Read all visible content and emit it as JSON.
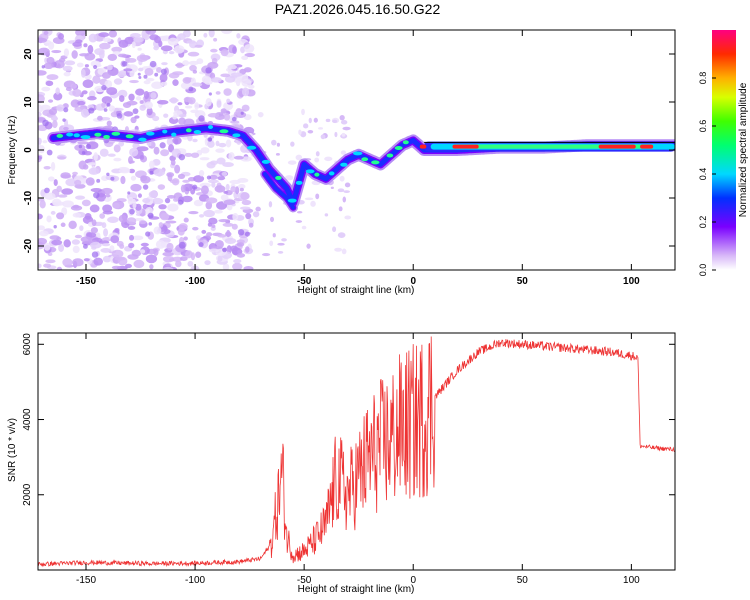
{
  "title": "PAZ1.2026.045.16.50.G22",
  "chart_data": [
    {
      "type": "heatmap",
      "title": "PAZ1.2026.045.16.50.G22",
      "xlabel": "Height of straight line (km)",
      "ylabel": "Frequency (Hz)",
      "xlim": [
        -172,
        120
      ],
      "ylim": [
        -25,
        25
      ],
      "xticks": [
        -150,
        -100,
        -50,
        0,
        50,
        100
      ],
      "yticks": [
        -20,
        -10,
        0,
        10,
        20
      ],
      "ridge": {
        "x": [
          -165,
          -155,
          -145,
          -135,
          -125,
          -115,
          -105,
          -95,
          -85,
          -78,
          -72,
          -66,
          -62,
          -58,
          -55,
          -50,
          -45,
          -40,
          -35,
          -30,
          -25,
          -20,
          -15,
          -10,
          -5,
          0,
          5,
          10,
          20,
          40,
          60,
          80,
          100,
          120
        ],
        "y": [
          2.5,
          3,
          3.5,
          3,
          2.5,
          3.5,
          4,
          4.5,
          4,
          3,
          0,
          -4,
          -6,
          -8,
          -11,
          -3,
          -5,
          -6,
          -4,
          -2,
          -1,
          -2,
          -3,
          -1,
          1,
          2,
          0,
          0,
          0,
          0.5,
          0.5,
          1,
          1,
          1
        ]
      },
      "secondary_ridge": {
        "x": [
          -68,
          -63,
          -58,
          -55
        ],
        "y": [
          -5,
          -8,
          -10,
          -12
        ]
      },
      "colorbar": {
        "label": "Normalized spectral amplitude",
        "ticks": [
          "0.0",
          "0.2",
          "0.4",
          "0.6",
          "0.8"
        ],
        "range": [
          0,
          1
        ]
      }
    },
    {
      "type": "line",
      "xlabel": "Height of straight line (km)",
      "ylabel": "SNR (10 * v/v)",
      "xlim": [
        -172,
        120
      ],
      "ylim": [
        0,
        6300
      ],
      "xticks": [
        -150,
        -100,
        -50,
        0,
        50,
        100
      ],
      "yticks": [
        2000,
        4000,
        6000
      ],
      "series": [
        {
          "name": "SNR",
          "color": "#ee3333",
          "x": [
            -172,
            -150,
            -120,
            -100,
            -80,
            -70,
            -65,
            -62,
            -60,
            -58,
            -55,
            -50,
            -45,
            -40,
            -35,
            -30,
            -25,
            -20,
            -15,
            -10,
            -5,
            0,
            5,
            10,
            20,
            30,
            40,
            50,
            60,
            70,
            80,
            90,
            100,
            103,
            104,
            110,
            120
          ],
          "values": [
            150,
            200,
            170,
            180,
            220,
            300,
            700,
            1800,
            2600,
            900,
            400,
            500,
            800,
            1200,
            2500,
            2000,
            2500,
            3000,
            3300,
            3500,
            3800,
            3900,
            4100,
            4600,
            5300,
            5800,
            6050,
            6000,
            5950,
            5900,
            5850,
            5800,
            5700,
            5650,
            3300,
            3250,
            3200
          ]
        }
      ]
    }
  ]
}
